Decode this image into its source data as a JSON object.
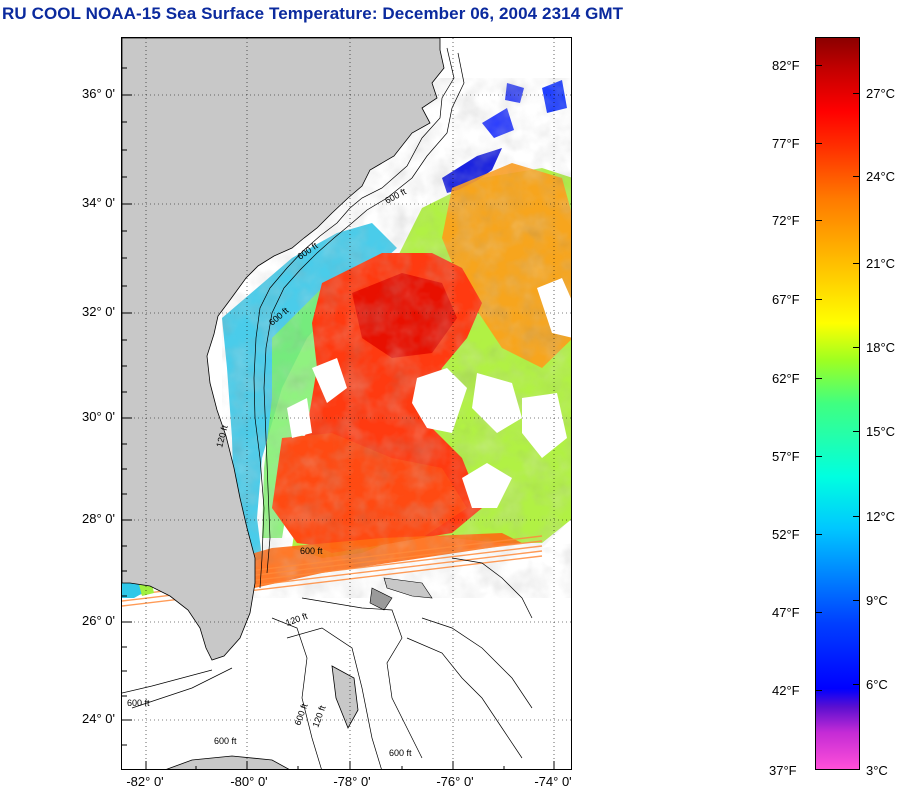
{
  "title": "RU COOL  NOAA-15  Sea Surface Temperature:  December 06, 2004 2314 GMT",
  "map": {
    "lat_labels": [
      "36° 0'",
      "34° 0'",
      "32° 0'",
      "30° 0'",
      "28° 0'",
      "26° 0'",
      "24° 0'"
    ],
    "lon_labels": [
      "-82° 0'",
      "-80° 0'",
      "-78° 0'",
      "-76° 0'",
      "-74° 0'"
    ],
    "land_color": "#c8c8c8",
    "isobath_labels": [
      "600 ft",
      "600 ft",
      "120 ft",
      "600 ft",
      "600 ft",
      "120 ft",
      "600 ft",
      "600 ft",
      "600 ft",
      "120 ft",
      "600 ft"
    ]
  },
  "colorbar": {
    "fahrenheit_labels": [
      "82°F",
      "77°F",
      "72°F",
      "67°F",
      "62°F",
      "57°F",
      "52°F",
      "47°F",
      "42°F",
      "37°F"
    ],
    "celsius_labels": [
      "27°C",
      "24°C",
      "21°C",
      "18°C",
      "15°C",
      "12°C",
      "9°C",
      "6°C",
      "3°C"
    ]
  }
}
